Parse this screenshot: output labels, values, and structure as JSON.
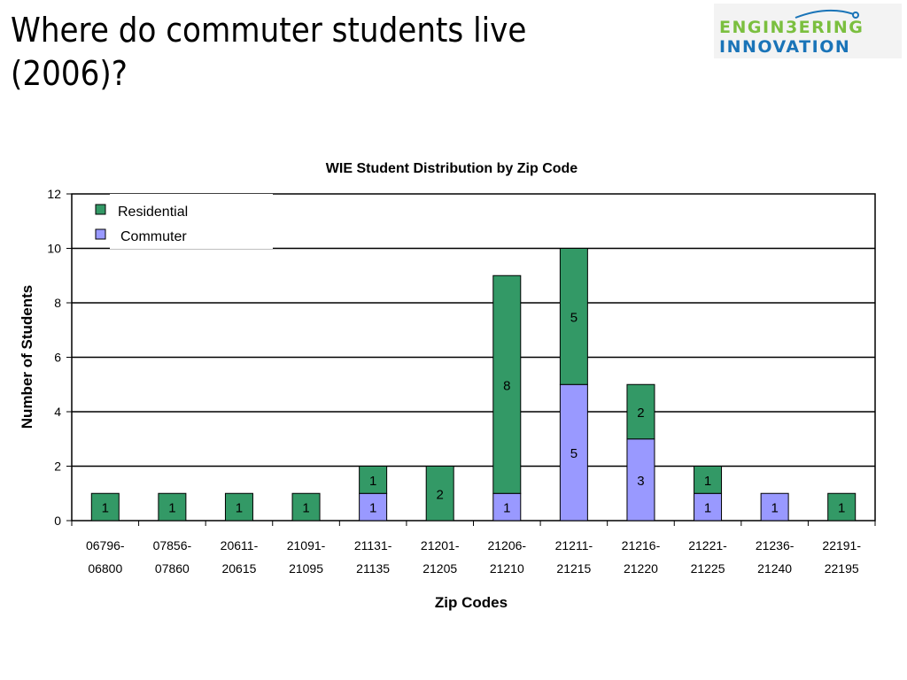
{
  "slide": {
    "title_line1": "Where do commuter students live",
    "title_line2": "(2006)?"
  },
  "logo": {
    "line1": "ENGIN3ERING",
    "line2": "INNOVATION"
  },
  "chart_data": {
    "type": "bar",
    "stacked": true,
    "title": "WIE Student Distribution by Zip Code",
    "xlabel": "Zip Codes",
    "ylabel": "Number of Students",
    "ylim": [
      0,
      12
    ],
    "yticks": [
      0,
      2,
      4,
      6,
      8,
      10,
      12
    ],
    "grid": true,
    "legend_position": "top-left",
    "categories": [
      [
        "06796-",
        "06800"
      ],
      [
        "07856-",
        "07860"
      ],
      [
        "20611-",
        "20615"
      ],
      [
        "21091-",
        "21095"
      ],
      [
        "21131-",
        "21135"
      ],
      [
        "21201-",
        "21205"
      ],
      [
        "21206-",
        "21210"
      ],
      [
        "21211-",
        "21215"
      ],
      [
        "21216-",
        "21220"
      ],
      [
        "21221-",
        "21225"
      ],
      [
        "21236-",
        "21240"
      ],
      [
        "22191-",
        "22195"
      ]
    ],
    "series": [
      {
        "name": "Commuter",
        "color": "#9999ff",
        "values": [
          0,
          0,
          0,
          0,
          1,
          0,
          1,
          5,
          3,
          1,
          1,
          0
        ]
      },
      {
        "name": "Residential",
        "color": "#339966",
        "values": [
          1,
          1,
          1,
          1,
          1,
          2,
          8,
          5,
          2,
          1,
          0,
          1
        ]
      }
    ]
  }
}
